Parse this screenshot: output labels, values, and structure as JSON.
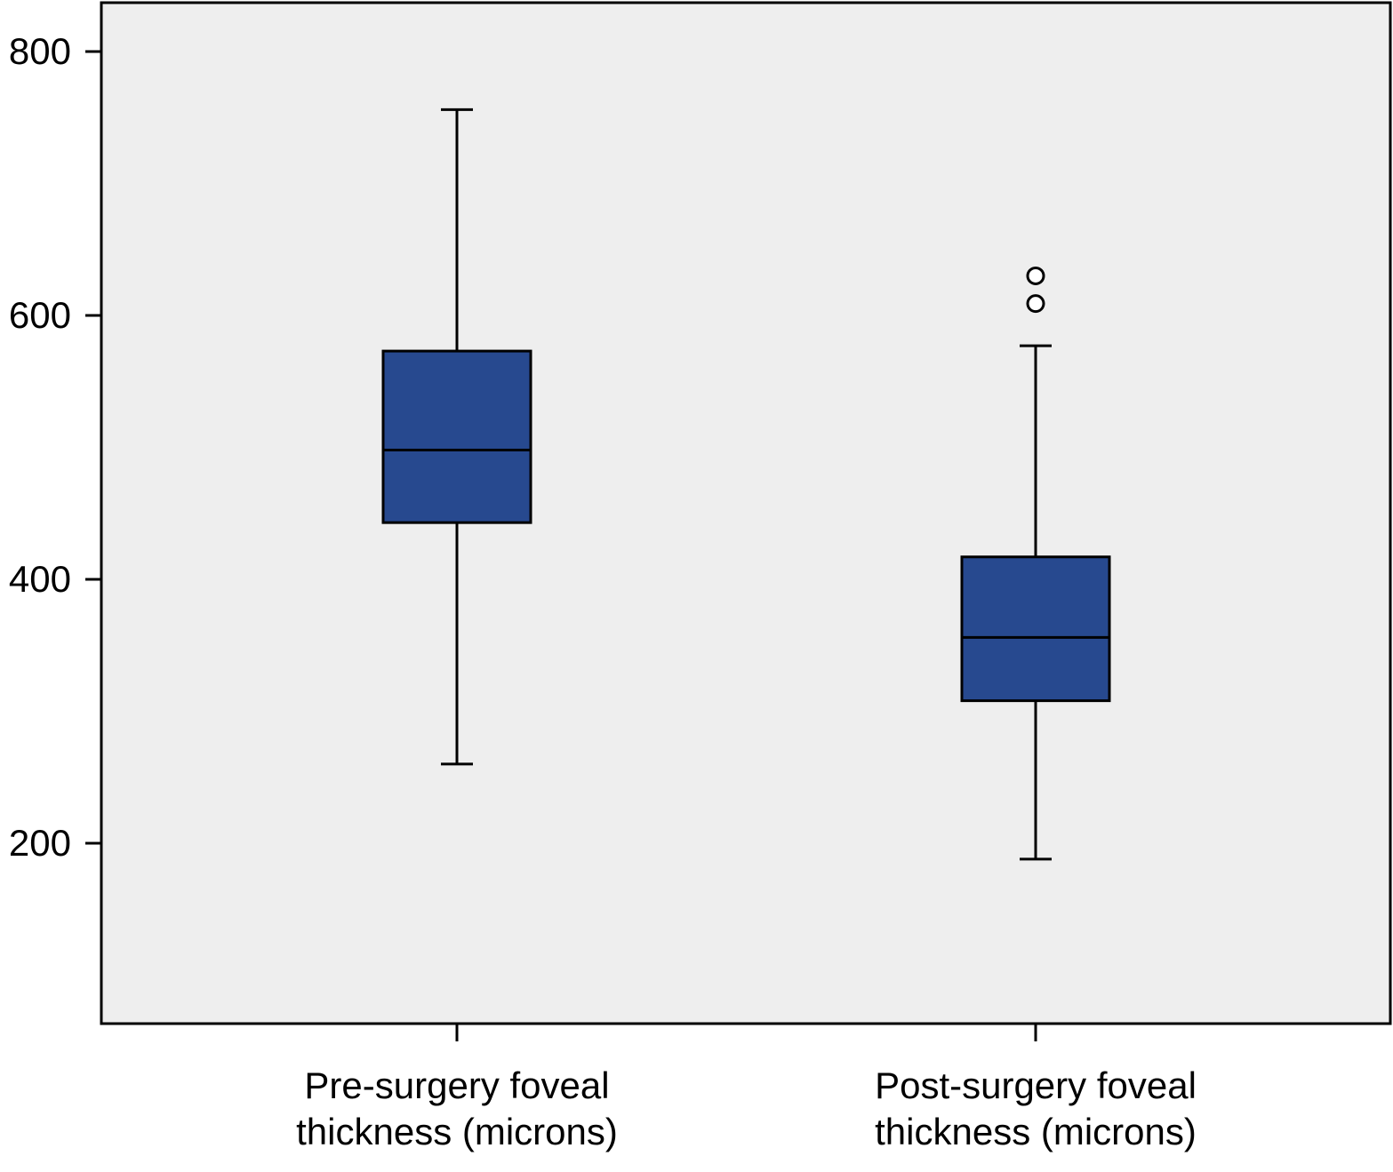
{
  "chart_data": {
    "type": "boxplot",
    "title": "",
    "xlabel": "",
    "ylabel": "",
    "ylim": [
      65,
      840
    ],
    "yticks": [
      200,
      400,
      600,
      800
    ],
    "grid": false,
    "colors": {
      "box_fill": "#27498f",
      "plot_bg": "#eeeeee",
      "stroke": "#000000"
    },
    "categories": [
      {
        "label_lines": [
          "Pre-surgery foveal",
          "thickness (microns)"
        ],
        "whisker_low": 260,
        "q1": 443,
        "median": 498,
        "q3": 573,
        "whisker_high": 756,
        "outliers": []
      },
      {
        "label_lines": [
          "Post-surgery foveal",
          "thickness (microns)"
        ],
        "whisker_low": 188,
        "q1": 308,
        "median": 356,
        "q3": 417,
        "whisker_high": 577,
        "outliers": [
          609,
          630
        ]
      }
    ]
  }
}
